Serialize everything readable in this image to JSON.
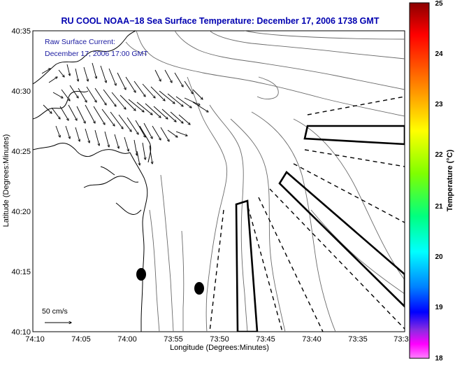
{
  "title": "RU COOL  NOAA−18  Sea Surface Temperature:  December 17, 2006 1738 GMT",
  "overlay_label_line1": "Raw Surface Current:",
  "overlay_label_line2": "December 17, 2006 17:00 GMT",
  "scale_label": "50 cm/s",
  "x_axis_label": "Longitude (Degrees:Minutes)",
  "y_axis_label": "Latitude (Degrees:Minutes)",
  "x_ticks": [
    "74:10",
    "74:05",
    "74:00",
    "73:55",
    "73:50",
    "73:45",
    "73:40",
    "73:35",
    "73:3"
  ],
  "y_ticks": [
    "40:35",
    "40:30",
    "40:25",
    "40:20",
    "40:15",
    "40:10"
  ],
  "colorbar": {
    "label": "Temperature (°C)",
    "ticks": [
      "25",
      "24",
      "23",
      "22",
      "21",
      "20",
      "19",
      "18"
    ],
    "colors": [
      "#8b0000",
      "#ff0000",
      "#ff8c00",
      "#ffff00",
      "#7fff00",
      "#00ff7f",
      "#00ffff",
      "#0080ff",
      "#0000ff",
      "#8a2be2",
      "#ff00ff",
      "#ff80ff"
    ]
  },
  "colors": {
    "title": "#0000b0",
    "overlay_label": "#1a1aa0",
    "coast": "#000000",
    "contour": "#6a6a6a"
  }
}
